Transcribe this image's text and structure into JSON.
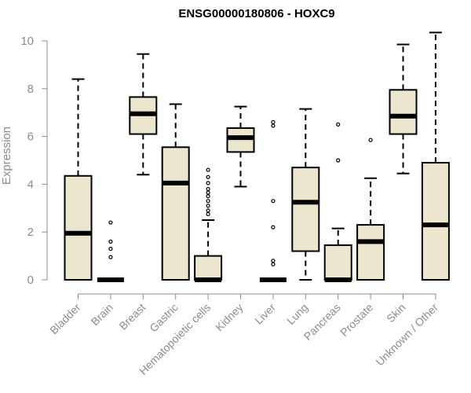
{
  "chart_data": {
    "type": "boxplot",
    "title": "ENSG00000180806 - HOXC9",
    "xlabel": "",
    "ylabel": "Expression",
    "ylim": [
      0,
      10.4
    ],
    "yticks": [
      0,
      2,
      4,
      6,
      8,
      10
    ],
    "grid": false,
    "colors": {
      "box_fill": "#ede6cf",
      "stroke": "#000000",
      "tick_text": "#8c8c8c"
    },
    "series": [
      {
        "category": "Bladder",
        "min": 0,
        "q1": 0,
        "median": 1.95,
        "q3": 4.35,
        "max": 8.4,
        "outliers": []
      },
      {
        "category": "Brain",
        "min": 0,
        "q1": 0,
        "median": 0,
        "q3": 0,
        "max": 0,
        "outliers": [
          0.95,
          1.3,
          1.6,
          2.4
        ]
      },
      {
        "category": "Breast",
        "min": 4.4,
        "q1": 6.1,
        "median": 6.95,
        "q3": 7.65,
        "max": 9.45,
        "outliers": []
      },
      {
        "category": "Gastric",
        "min": 0,
        "q1": 0,
        "median": 4.05,
        "q3": 5.55,
        "max": 7.35,
        "outliers": []
      },
      {
        "category": "Hematopoietic cells",
        "min": 0,
        "q1": 0,
        "median": 0,
        "q3": 1.0,
        "max": 2.5,
        "outliers": [
          2.75,
          2.9,
          3.1,
          3.3,
          3.5,
          3.65,
          3.8,
          4.05,
          4.3,
          4.6
        ]
      },
      {
        "category": "Kidney",
        "min": 3.9,
        "q1": 5.35,
        "median": 5.95,
        "q3": 6.35,
        "max": 7.25,
        "outliers": []
      },
      {
        "category": "Liver",
        "min": 0,
        "q1": 0,
        "median": 0,
        "q3": 0,
        "max": 0,
        "outliers": [
          0.65,
          0.8,
          2.2,
          3.3,
          6.45,
          6.6
        ]
      },
      {
        "category": "Lung",
        "min": 0,
        "q1": 1.2,
        "median": 3.25,
        "q3": 4.7,
        "max": 7.15,
        "outliers": []
      },
      {
        "category": "Pancreas",
        "min": 0,
        "q1": 0,
        "median": 0,
        "q3": 1.45,
        "max": 2.15,
        "outliers": [
          5.0,
          6.5
        ]
      },
      {
        "category": "Prostate",
        "min": 0,
        "q1": 0,
        "median": 1.6,
        "q3": 2.3,
        "max": 4.25,
        "outliers": [
          5.85
        ]
      },
      {
        "category": "Skin",
        "min": 4.45,
        "q1": 6.1,
        "median": 6.85,
        "q3": 7.95,
        "max": 9.85,
        "outliers": []
      },
      {
        "category": "Unknown / Other",
        "min": 0,
        "q1": 0,
        "median": 2.3,
        "q3": 4.9,
        "max": 10.35,
        "outliers": []
      }
    ]
  }
}
